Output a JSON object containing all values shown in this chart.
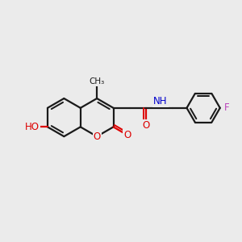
{
  "bg_color": "#ebebeb",
  "bond_color": "#1a1a1a",
  "oxygen_color": "#dd0000",
  "nitrogen_color": "#0000cc",
  "fluorine_color": "#bb44bb",
  "line_width": 1.6,
  "fig_width": 3.0,
  "fig_height": 3.0,
  "dpi": 100,
  "xlim": [
    0,
    10
  ],
  "ylim": [
    0,
    10
  ]
}
